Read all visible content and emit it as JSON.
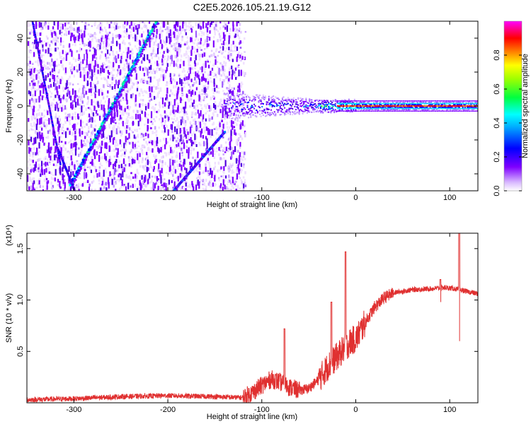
{
  "title": "C2E5.2026.105.21.19.G12",
  "chart_data": [
    {
      "type": "heatmap",
      "xlabel": "Height of straight line (km)",
      "ylabel": "Frequency (Hz)",
      "xlim": [
        -350,
        130
      ],
      "ylim": [
        -50,
        50
      ],
      "x_ticks": [
        -300,
        -200,
        -100,
        0,
        100
      ],
      "y_ticks": [
        -40,
        -20,
        0,
        20,
        40
      ],
      "colorbar": {
        "label": "Normalized spectral amplitude",
        "range": [
          0,
          1
        ],
        "ticks": [
          0.0,
          0.2,
          0.4,
          0.6,
          0.8
        ],
        "tick_labels": [
          "0.0",
          "0.2",
          "0.4",
          "0.6",
          "0.8"
        ],
        "colors": [
          "#ffffff",
          "#7f00ff",
          "#0000ff",
          "#00ffff",
          "#00ff00",
          "#ffff00",
          "#ff8000",
          "#ff0000",
          "#ff00ff"
        ]
      },
      "features": [
        {
          "name": "steady direct-signal line",
          "x": [
            -50,
            130
          ],
          "y": [
            0,
            0
          ],
          "amplitude": 0.8
        },
        {
          "name": "noise cloud",
          "x": [
            -350,
            -120
          ],
          "y": [
            -50,
            50
          ],
          "amplitude": 0.15
        },
        {
          "name": "diagonal reflection track",
          "x": [
            -305,
            -215
          ],
          "y": [
            -47,
            48
          ]
        },
        {
          "name": "lower diagonal track",
          "x": [
            -195,
            -140
          ],
          "y": [
            -50,
            -15
          ]
        },
        {
          "name": "left steep track",
          "x": [
            -345,
            -315
          ],
          "y": [
            50,
            -35
          ]
        }
      ]
    },
    {
      "type": "line",
      "xlabel": "Height of straight line (km)",
      "ylabel": "SNR (10 * v/v)",
      "multiplier": "(x10⁴)",
      "xlim": [
        -350,
        130
      ],
      "ylim": [
        0,
        1.65
      ],
      "x_ticks": [
        -300,
        -200,
        -100,
        0,
        100
      ],
      "y_ticks": [
        0.5,
        1.0,
        1.5
      ],
      "y_tick_labels": [
        "0.5",
        "1.0",
        "1.5"
      ],
      "x_tick_labels": [
        "-300",
        "-200",
        "-100",
        "0",
        "100"
      ],
      "color": "#e03030",
      "series": [
        {
          "name": "SNR",
          "x": [
            -350,
            -300,
            -250,
            -200,
            -150,
            -120,
            -110,
            -100,
            -90,
            -80,
            -70,
            -60,
            -50,
            -40,
            -30,
            -20,
            -15,
            -10,
            -5,
            0,
            10,
            20,
            30,
            40,
            60,
            80,
            95,
            105,
            110,
            115,
            120,
            130
          ],
          "y": [
            0.03,
            0.04,
            0.06,
            0.07,
            0.06,
            0.05,
            0.1,
            0.17,
            0.23,
            0.2,
            0.15,
            0.12,
            0.14,
            0.22,
            0.35,
            0.45,
            0.5,
            0.55,
            0.6,
            0.62,
            0.78,
            0.93,
            1.02,
            1.07,
            1.1,
            1.11,
            1.12,
            1.11,
            1.1,
            1.09,
            1.08,
            1.06
          ]
        }
      ],
      "spikes": [
        {
          "x": -76,
          "y": 0.72
        },
        {
          "x": -26,
          "y": 0.98
        },
        {
          "x": -11,
          "y": 1.47
        },
        {
          "x": 110,
          "y": 1.68
        },
        {
          "x": 90,
          "y": 1.2
        }
      ]
    }
  ]
}
